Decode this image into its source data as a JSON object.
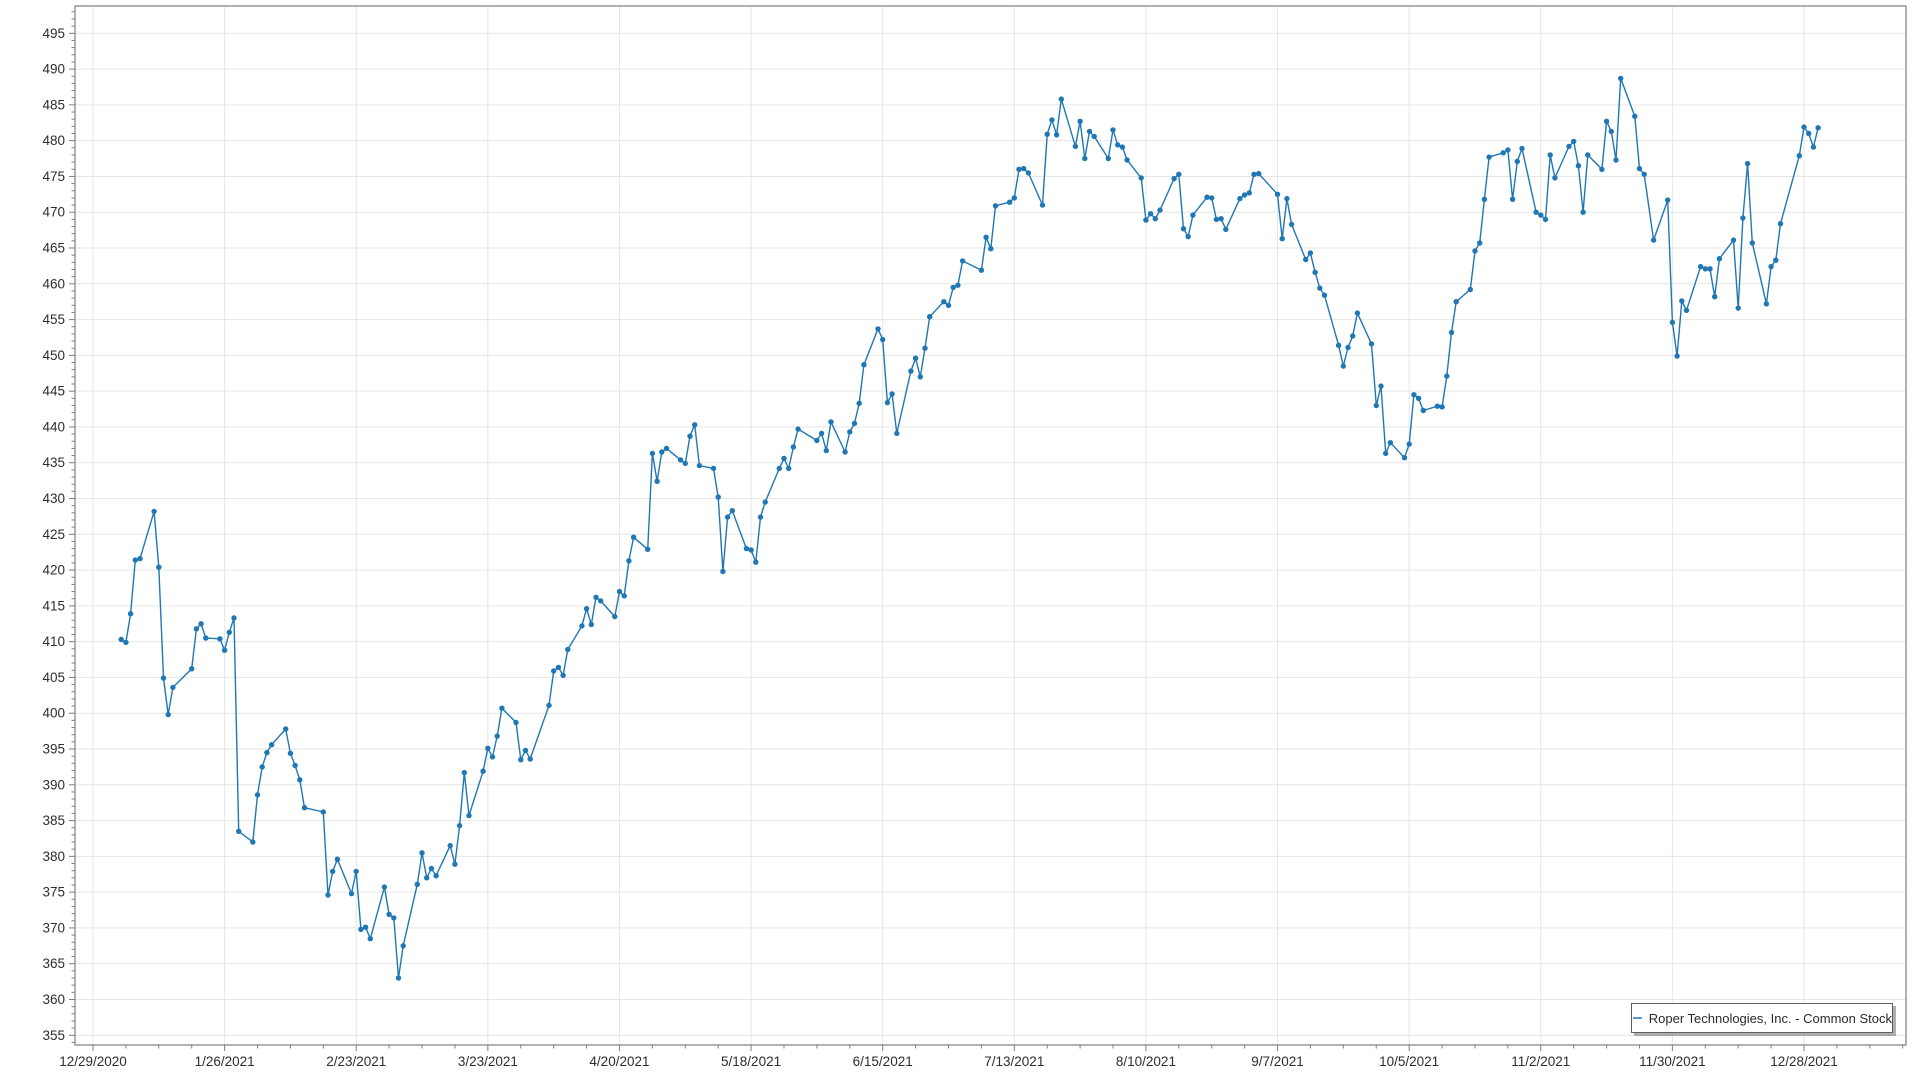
{
  "legend": {
    "label": "Roper Technologies, Inc. - Common Stock"
  },
  "colors": {
    "series_line": "#1f77b4",
    "marker_fill": "#1f77b4",
    "gridline": "#e6e6e6",
    "axis": "#7f7f7f",
    "tick_text": "#2e2e2e",
    "background": "#ffffff",
    "legend_border": "#5f5f5f"
  },
  "chart_data": {
    "type": "line",
    "title": "",
    "xlabel": "",
    "ylabel": "",
    "grid": true,
    "legend_position": "bottom-right",
    "x_axis": {
      "tick_labels": [
        "12/29/2020",
        "1/26/2021",
        "2/23/2021",
        "3/23/2021",
        "4/20/2021",
        "5/18/2021",
        "6/15/2021",
        "7/13/2021",
        "8/10/2021",
        "9/7/2021",
        "10/5/2021",
        "11/2/2021",
        "11/30/2021",
        "12/28/2021"
      ],
      "major_tick_interval_days": 28,
      "minor_tick_interval_days": 7
    },
    "y_axis": {
      "min": 353.5,
      "max": 499,
      "major_step": 5,
      "minor_step": 1,
      "labels": [
        355,
        360,
        365,
        370,
        375,
        380,
        385,
        390,
        395,
        400,
        405,
        410,
        415,
        420,
        425,
        430,
        435,
        440,
        445,
        450,
        455,
        460,
        465,
        470,
        475,
        480,
        485,
        490,
        495
      ]
    },
    "series": [
      {
        "name": "Roper Technologies, Inc. - Common Stock",
        "color": "#1f77b4",
        "marker": "circle",
        "points": [
          [
            "2021-01-04",
            410.3
          ],
          [
            "2021-01-05",
            409.9
          ],
          [
            "2021-01-06",
            413.9
          ],
          [
            "2021-01-07",
            421.4
          ],
          [
            "2021-01-08",
            421.6
          ],
          [
            "2021-01-11",
            428.2
          ],
          [
            "2021-01-12",
            420.4
          ],
          [
            "2021-01-13",
            404.9
          ],
          [
            "2021-01-14",
            399.8
          ],
          [
            "2021-01-15",
            403.6
          ],
          [
            "2021-01-19",
            406.2
          ],
          [
            "2021-01-20",
            411.8
          ],
          [
            "2021-01-21",
            412.5
          ],
          [
            "2021-01-22",
            410.5
          ],
          [
            "2021-01-25",
            410.4
          ],
          [
            "2021-01-26",
            408.8
          ],
          [
            "2021-01-27",
            411.3
          ],
          [
            "2021-01-28",
            413.3
          ],
          [
            "2021-01-29",
            383.5
          ],
          [
            "2021-02-01",
            382.0
          ],
          [
            "2021-02-02",
            388.6
          ],
          [
            "2021-02-03",
            392.5
          ],
          [
            "2021-02-04",
            394.5
          ],
          [
            "2021-02-05",
            395.6
          ],
          [
            "2021-02-08",
            397.8
          ],
          [
            "2021-02-09",
            394.4
          ],
          [
            "2021-02-10",
            392.7
          ],
          [
            "2021-02-11",
            390.7
          ],
          [
            "2021-02-12",
            386.8
          ],
          [
            "2021-02-16",
            386.2
          ],
          [
            "2021-02-17",
            374.6
          ],
          [
            "2021-02-18",
            377.9
          ],
          [
            "2021-02-19",
            379.6
          ],
          [
            "2021-02-22",
            374.8
          ],
          [
            "2021-02-23",
            377.9
          ],
          [
            "2021-02-24",
            369.8
          ],
          [
            "2021-02-25",
            370.1
          ],
          [
            "2021-02-26",
            368.5
          ],
          [
            "2021-03-01",
            375.7
          ],
          [
            "2021-03-02",
            371.9
          ],
          [
            "2021-03-03",
            371.4
          ],
          [
            "2021-03-04",
            363.0
          ],
          [
            "2021-03-05",
            367.5
          ],
          [
            "2021-03-08",
            376.1
          ],
          [
            "2021-03-09",
            380.5
          ],
          [
            "2021-03-10",
            377.0
          ],
          [
            "2021-03-11",
            378.3
          ],
          [
            "2021-03-12",
            377.3
          ],
          [
            "2021-03-15",
            381.5
          ],
          [
            "2021-03-16",
            378.9
          ],
          [
            "2021-03-17",
            384.3
          ],
          [
            "2021-03-18",
            391.7
          ],
          [
            "2021-03-19",
            385.7
          ],
          [
            "2021-03-22",
            391.9
          ],
          [
            "2021-03-23",
            395.1
          ],
          [
            "2021-03-24",
            393.9
          ],
          [
            "2021-03-25",
            396.8
          ],
          [
            "2021-03-26",
            400.7
          ],
          [
            "2021-03-29",
            398.7
          ],
          [
            "2021-03-30",
            393.5
          ],
          [
            "2021-03-31",
            394.8
          ],
          [
            "2021-04-01",
            393.6
          ],
          [
            "2021-04-05",
            401.1
          ],
          [
            "2021-04-06",
            405.9
          ],
          [
            "2021-04-07",
            406.4
          ],
          [
            "2021-04-08",
            405.3
          ],
          [
            "2021-04-09",
            408.9
          ],
          [
            "2021-04-12",
            412.2
          ],
          [
            "2021-04-13",
            414.6
          ],
          [
            "2021-04-14",
            412.4
          ],
          [
            "2021-04-15",
            416.2
          ],
          [
            "2021-04-16",
            415.7
          ],
          [
            "2021-04-19",
            413.5
          ],
          [
            "2021-04-20",
            417.0
          ],
          [
            "2021-04-21",
            416.4
          ],
          [
            "2021-04-22",
            421.3
          ],
          [
            "2021-04-23",
            424.6
          ],
          [
            "2021-04-26",
            422.9
          ],
          [
            "2021-04-27",
            436.3
          ],
          [
            "2021-04-28",
            432.4
          ],
          [
            "2021-04-29",
            436.5
          ],
          [
            "2021-04-30",
            437.0
          ],
          [
            "2021-05-03",
            435.4
          ],
          [
            "2021-05-04",
            434.9
          ],
          [
            "2021-05-05",
            438.7
          ],
          [
            "2021-05-06",
            440.3
          ],
          [
            "2021-05-07",
            434.6
          ],
          [
            "2021-05-10",
            434.2
          ],
          [
            "2021-05-11",
            430.2
          ],
          [
            "2021-05-12",
            419.8
          ],
          [
            "2021-05-13",
            427.4
          ],
          [
            "2021-05-14",
            428.3
          ],
          [
            "2021-05-17",
            423.0
          ],
          [
            "2021-05-18",
            422.8
          ],
          [
            "2021-05-19",
            421.1
          ],
          [
            "2021-05-20",
            427.4
          ],
          [
            "2021-05-21",
            429.5
          ],
          [
            "2021-05-24",
            434.2
          ],
          [
            "2021-05-25",
            435.6
          ],
          [
            "2021-05-26",
            434.2
          ],
          [
            "2021-05-27",
            437.2
          ],
          [
            "2021-05-28",
            439.7
          ],
          [
            "2021-06-01",
            438.1
          ],
          [
            "2021-06-02",
            439.1
          ],
          [
            "2021-06-03",
            436.7
          ],
          [
            "2021-06-04",
            440.7
          ],
          [
            "2021-06-07",
            436.5
          ],
          [
            "2021-06-08",
            439.3
          ],
          [
            "2021-06-09",
            440.5
          ],
          [
            "2021-06-10",
            443.3
          ],
          [
            "2021-06-11",
            448.7
          ],
          [
            "2021-06-14",
            453.7
          ],
          [
            "2021-06-15",
            452.2
          ],
          [
            "2021-06-16",
            443.4
          ],
          [
            "2021-06-17",
            444.6
          ],
          [
            "2021-06-18",
            439.1
          ],
          [
            "2021-06-21",
            447.8
          ],
          [
            "2021-06-22",
            449.6
          ],
          [
            "2021-06-23",
            447.0
          ],
          [
            "2021-06-24",
            451.0
          ],
          [
            "2021-06-25",
            455.4
          ],
          [
            "2021-06-28",
            457.5
          ],
          [
            "2021-06-29",
            457.0
          ],
          [
            "2021-06-30",
            459.5
          ],
          [
            "2021-07-01",
            459.8
          ],
          [
            "2021-07-02",
            463.2
          ],
          [
            "2021-07-06",
            461.9
          ],
          [
            "2021-07-07",
            466.5
          ],
          [
            "2021-07-08",
            464.9
          ],
          [
            "2021-07-09",
            470.9
          ],
          [
            "2021-07-12",
            471.4
          ],
          [
            "2021-07-13",
            472.0
          ],
          [
            "2021-07-14",
            476.0
          ],
          [
            "2021-07-15",
            476.1
          ],
          [
            "2021-07-16",
            475.5
          ],
          [
            "2021-07-19",
            471.0
          ],
          [
            "2021-07-20",
            480.9
          ],
          [
            "2021-07-21",
            482.9
          ],
          [
            "2021-07-22",
            480.8
          ],
          [
            "2021-07-23",
            485.8
          ],
          [
            "2021-07-26",
            479.2
          ],
          [
            "2021-07-27",
            482.7
          ],
          [
            "2021-07-28",
            477.5
          ],
          [
            "2021-07-29",
            481.3
          ],
          [
            "2021-07-30",
            480.6
          ],
          [
            "2021-08-02",
            477.5
          ],
          [
            "2021-08-03",
            481.5
          ],
          [
            "2021-08-04",
            479.4
          ],
          [
            "2021-08-05",
            479.1
          ],
          [
            "2021-08-06",
            477.3
          ],
          [
            "2021-08-09",
            474.8
          ],
          [
            "2021-08-10",
            468.9
          ],
          [
            "2021-08-11",
            469.8
          ],
          [
            "2021-08-12",
            469.1
          ],
          [
            "2021-08-13",
            470.3
          ],
          [
            "2021-08-16",
            474.7
          ],
          [
            "2021-08-17",
            475.3
          ],
          [
            "2021-08-18",
            467.7
          ],
          [
            "2021-08-19",
            466.6
          ],
          [
            "2021-08-20",
            469.6
          ],
          [
            "2021-08-23",
            472.1
          ],
          [
            "2021-08-24",
            472.0
          ],
          [
            "2021-08-25",
            469.0
          ],
          [
            "2021-08-26",
            469.1
          ],
          [
            "2021-08-27",
            467.6
          ],
          [
            "2021-08-30",
            471.9
          ],
          [
            "2021-08-31",
            472.4
          ],
          [
            "2021-09-01",
            472.7
          ],
          [
            "2021-09-02",
            475.3
          ],
          [
            "2021-09-03",
            475.4
          ],
          [
            "2021-09-07",
            472.5
          ],
          [
            "2021-09-08",
            466.3
          ],
          [
            "2021-09-09",
            471.9
          ],
          [
            "2021-09-10",
            468.3
          ],
          [
            "2021-09-13",
            463.4
          ],
          [
            "2021-09-14",
            464.3
          ],
          [
            "2021-09-15",
            461.6
          ],
          [
            "2021-09-16",
            459.4
          ],
          [
            "2021-09-17",
            458.4
          ],
          [
            "2021-09-20",
            451.4
          ],
          [
            "2021-09-21",
            448.5
          ],
          [
            "2021-09-22",
            451.1
          ],
          [
            "2021-09-23",
            452.7
          ],
          [
            "2021-09-24",
            455.9
          ],
          [
            "2021-09-27",
            451.6
          ],
          [
            "2021-09-28",
            443.0
          ],
          [
            "2021-09-29",
            445.7
          ],
          [
            "2021-09-30",
            436.3
          ],
          [
            "2021-10-01",
            437.8
          ],
          [
            "2021-10-04",
            435.7
          ],
          [
            "2021-10-05",
            437.6
          ],
          [
            "2021-10-06",
            444.5
          ],
          [
            "2021-10-07",
            444.0
          ],
          [
            "2021-10-08",
            442.3
          ],
          [
            "2021-10-11",
            442.9
          ],
          [
            "2021-10-12",
            442.8
          ],
          [
            "2021-10-13",
            447.1
          ],
          [
            "2021-10-14",
            453.2
          ],
          [
            "2021-10-15",
            457.5
          ],
          [
            "2021-10-18",
            459.2
          ],
          [
            "2021-10-19",
            464.6
          ],
          [
            "2021-10-20",
            465.7
          ],
          [
            "2021-10-21",
            471.8
          ],
          [
            "2021-10-22",
            477.7
          ],
          [
            "2021-10-25",
            478.3
          ],
          [
            "2021-10-26",
            478.7
          ],
          [
            "2021-10-27",
            471.8
          ],
          [
            "2021-10-28",
            477.1
          ],
          [
            "2021-10-29",
            478.9
          ],
          [
            "2021-11-01",
            470.0
          ],
          [
            "2021-11-02",
            469.6
          ],
          [
            "2021-11-03",
            469.0
          ],
          [
            "2021-11-04",
            478.0
          ],
          [
            "2021-11-05",
            474.8
          ],
          [
            "2021-11-08",
            479.2
          ],
          [
            "2021-11-09",
            479.9
          ],
          [
            "2021-11-10",
            476.5
          ],
          [
            "2021-11-11",
            470.0
          ],
          [
            "2021-11-12",
            478.0
          ],
          [
            "2021-11-15",
            476.0
          ],
          [
            "2021-11-16",
            482.7
          ],
          [
            "2021-11-17",
            481.3
          ],
          [
            "2021-11-18",
            477.3
          ],
          [
            "2021-11-19",
            488.7
          ],
          [
            "2021-11-22",
            483.4
          ],
          [
            "2021-11-23",
            476.1
          ],
          [
            "2021-11-24",
            475.3
          ],
          [
            "2021-11-26",
            466.1
          ],
          [
            "2021-11-29",
            471.7
          ],
          [
            "2021-11-30",
            454.6
          ],
          [
            "2021-12-01",
            449.9
          ],
          [
            "2021-12-02",
            457.6
          ],
          [
            "2021-12-03",
            456.3
          ],
          [
            "2021-12-06",
            462.4
          ],
          [
            "2021-12-07",
            462.1
          ],
          [
            "2021-12-08",
            462.1
          ],
          [
            "2021-12-09",
            458.2
          ],
          [
            "2021-12-10",
            463.5
          ],
          [
            "2021-12-13",
            466.1
          ],
          [
            "2021-12-14",
            456.6
          ],
          [
            "2021-12-15",
            469.2
          ],
          [
            "2021-12-16",
            476.8
          ],
          [
            "2021-12-17",
            465.7
          ],
          [
            "2021-12-20",
            457.2
          ],
          [
            "2021-12-21",
            462.4
          ],
          [
            "2021-12-22",
            463.3
          ],
          [
            "2021-12-23",
            468.4
          ],
          [
            "2021-12-27",
            477.9
          ],
          [
            "2021-12-28",
            481.9
          ],
          [
            "2021-12-29",
            481.0
          ],
          [
            "2021-12-30",
            479.1
          ],
          [
            "2021-12-31",
            481.8
          ]
        ]
      }
    ]
  }
}
